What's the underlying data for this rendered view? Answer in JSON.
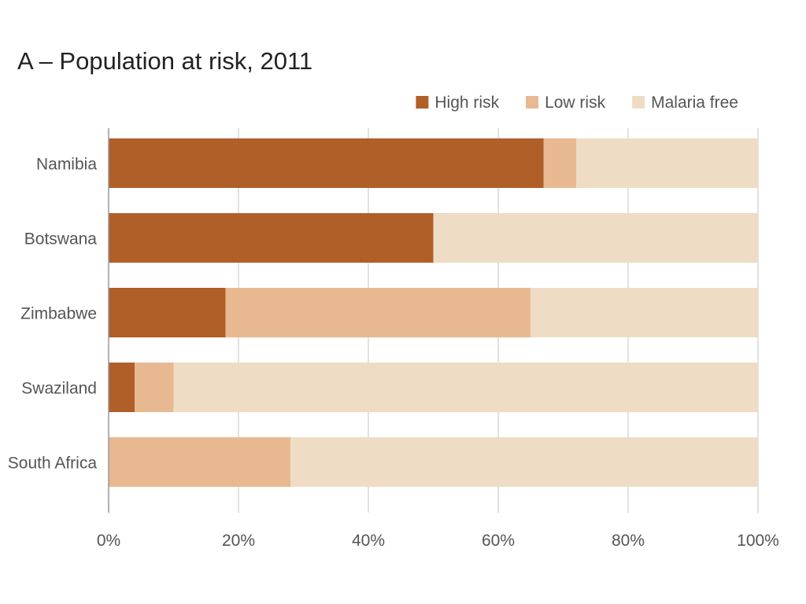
{
  "chart_data": {
    "type": "bar",
    "orientation": "horizontal",
    "stacked": true,
    "title": "A – Population at risk, 2011",
    "categories": [
      "Namibia",
      "Botswana",
      "Zimbabwe",
      "Swaziland",
      "South Africa"
    ],
    "series": [
      {
        "name": "High risk",
        "color": "#b05f29",
        "values": [
          67,
          50,
          18,
          4,
          0
        ]
      },
      {
        "name": "Low risk",
        "color": "#e8b991",
        "values": [
          5,
          0,
          47,
          6,
          28
        ]
      },
      {
        "name": "Malaria free",
        "color": "#efdcc5",
        "values": [
          28,
          50,
          35,
          90,
          72
        ]
      }
    ],
    "xlim": [
      0,
      100
    ],
    "x_ticks": [
      0,
      20,
      40,
      60,
      80,
      100
    ],
    "x_tick_labels": [
      "0%",
      "20%",
      "40%",
      "60%",
      "80%",
      "100%"
    ],
    "grid": "vertical",
    "legend_position": "top-right"
  }
}
